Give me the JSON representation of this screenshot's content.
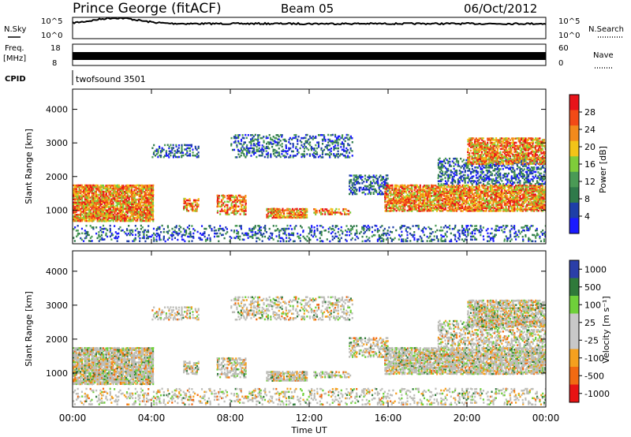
{
  "header": {
    "station": "Prince George (fitACF)",
    "beam": "Beam 05",
    "date": "06/Oct/2012"
  },
  "noise_panel": {
    "left_label": "N.Sky",
    "right_label": "N.Search",
    "ticks_left": [
      "10^5",
      "10^0"
    ],
    "ticks_right": [
      "10^5",
      "10^0"
    ]
  },
  "freq_panel": {
    "left_label_1": "Freq.",
    "left_label_2": "[MHz]",
    "right_label": "Nave",
    "ticks_left": [
      "18",
      "8"
    ],
    "ticks_right": [
      "60",
      "0"
    ]
  },
  "cpid_panel": {
    "left_label": "CPID",
    "text": "twofsound 3501"
  },
  "colors": {
    "power_scale": [
      "#1a1aff",
      "#1e3fa8",
      "#2f7a4a",
      "#4a9a55",
      "#7fcc3a",
      "#f2c418",
      "#f28a1c",
      "#f24a16",
      "#e8141a"
    ],
    "velocity_scale": [
      "#2a3ea8",
      "#2f7a3a",
      "#6fd03a",
      "#c8c8c8",
      "#c8c8c8",
      "#f5a01e",
      "#f26a12",
      "#e81414"
    ],
    "gray_scatter": "#bdbdb8"
  },
  "chart_data": [
    {
      "type": "heatmap",
      "name": "power",
      "ylabel": "Slant Range [km]",
      "ylim": [
        0,
        4600
      ],
      "y_ticks": [
        "1000",
        "2000",
        "3000",
        "4000"
      ],
      "colorbar_label": "Power [dB]",
      "colorbar_ticks": [
        "4",
        "8",
        "12",
        "16",
        "20",
        "24",
        "28"
      ],
      "colorbar_range": [
        0,
        32
      ]
    },
    {
      "type": "heatmap",
      "name": "velocity",
      "ylabel": "Slant Range [km]",
      "ylim": [
        0,
        4600
      ],
      "y_ticks": [
        "1000",
        "2000",
        "3000",
        "4000"
      ],
      "colorbar_label": "Velocity [m s⁻¹]",
      "colorbar_ticks": [
        "1000",
        "500",
        "100",
        "25",
        "-25",
        "-100",
        "-500",
        "-1000"
      ],
      "x_ticks": [
        "00:00",
        "04:00",
        "08:00",
        "12:00",
        "16:00",
        "20:00",
        "00:00"
      ],
      "xlabel": "Time UT"
    }
  ]
}
